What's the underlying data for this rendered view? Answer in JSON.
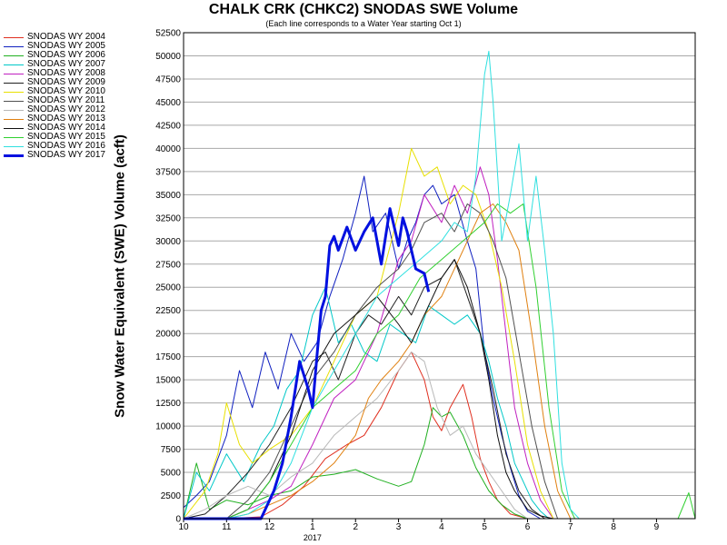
{
  "chart_data": {
    "type": "line",
    "title": "CHALK CRK (CHKC2) SNODAS SWE Volume",
    "subtitle": "(Each line corresponds to a Water Year starting Oct 1)",
    "xlabel": "",
    "ylabel": "Snow Water Equivalent (SWE) Volume (acft)",
    "ylim": [
      0,
      52500
    ],
    "yticks": [
      0,
      2500,
      5000,
      7500,
      10000,
      12500,
      15000,
      17500,
      20000,
      22500,
      25000,
      27500,
      30000,
      32500,
      35000,
      37500,
      40000,
      42500,
      45000,
      47500,
      50000,
      52500
    ],
    "xlim": [
      10,
      21.9
    ],
    "xticks": [
      {
        "x": 10,
        "label": "10"
      },
      {
        "x": 11,
        "label": "11"
      },
      {
        "x": 12,
        "label": "12"
      },
      {
        "x": 13,
        "label": "1"
      },
      {
        "x": 14,
        "label": "2"
      },
      {
        "x": 15,
        "label": "3"
      },
      {
        "x": 16,
        "label": "4"
      },
      {
        "x": 17,
        "label": "5"
      },
      {
        "x": 18,
        "label": "6"
      },
      {
        "x": 19,
        "label": "7"
      },
      {
        "x": 20,
        "label": "8"
      },
      {
        "x": 21,
        "label": "9"
      }
    ],
    "year_label": {
      "x": 13,
      "label": "2017"
    },
    "grid": true,
    "legend_position": "left",
    "series": [
      {
        "name": "SNODAS WY 2004",
        "color": "#e03020",
        "width": 1,
        "x": [
          10,
          11,
          11.8,
          12.3,
          12.8,
          13.3,
          13.8,
          14.2,
          14.6,
          15,
          15.3,
          15.6,
          15.8,
          16,
          16.2,
          16.5,
          16.7,
          16.9,
          17.1,
          17.3,
          17.6,
          18
        ],
        "y": [
          0,
          0,
          200,
          1500,
          3500,
          6500,
          8000,
          9000,
          12000,
          16000,
          18000,
          15000,
          11000,
          9500,
          12000,
          14500,
          11000,
          6500,
          4000,
          2000,
          500,
          0
        ]
      },
      {
        "name": "SNODAS WY 2005",
        "color": "#1020c0",
        "width": 1,
        "x": [
          10,
          10.3,
          10.6,
          11,
          11.3,
          11.6,
          11.9,
          12.2,
          12.5,
          12.8,
          13.1,
          13.4,
          13.7,
          14,
          14.2,
          14.4,
          14.7,
          15,
          15.2,
          15.4,
          15.6,
          15.8,
          16,
          16.3,
          16.6,
          16.8,
          17,
          17.2,
          17.4,
          17.6,
          17.8,
          18,
          18.3
        ],
        "y": [
          1200,
          2500,
          4000,
          9000,
          16000,
          12000,
          18000,
          14000,
          20000,
          17000,
          19000,
          24000,
          28000,
          33000,
          37000,
          31000,
          33000,
          27000,
          30000,
          32000,
          35000,
          36000,
          34000,
          35000,
          30000,
          27000,
          18000,
          13000,
          9000,
          5500,
          2500,
          800,
          0
        ]
      },
      {
        "name": "SNODAS WY 2006",
        "color": "#20b020",
        "width": 1,
        "x": [
          10,
          10.3,
          10.6,
          11,
          11.5,
          12,
          12.5,
          13,
          13.5,
          14,
          14.5,
          15,
          15.3,
          15.6,
          15.8,
          16,
          16.2,
          16.5,
          16.8,
          17.1,
          17.4,
          17.7,
          18
        ],
        "y": [
          0,
          6000,
          1000,
          2000,
          1500,
          2500,
          3000,
          4500,
          4800,
          5300,
          4300,
          3500,
          4000,
          8000,
          12000,
          11000,
          11500,
          9000,
          5500,
          3000,
          1500,
          500,
          0
        ]
      },
      {
        "name": "SNODAS WY 2007",
        "color": "#00c8c8",
        "width": 1,
        "x": [
          10,
          10.3,
          10.6,
          11,
          11.4,
          11.8,
          12.1,
          12.4,
          12.7,
          13,
          13.3,
          13.6,
          13.9,
          14.2,
          14.5,
          14.8,
          15.1,
          15.4,
          15.7,
          16,
          16.3,
          16.6,
          16.9,
          17.1,
          17.3,
          17.5,
          17.7,
          17.9,
          18.1,
          18.3,
          18.5
        ],
        "y": [
          0,
          5000,
          3000,
          7000,
          4000,
          8000,
          10000,
          14000,
          16000,
          22000,
          25000,
          19000,
          21000,
          18000,
          17000,
          21000,
          20000,
          19000,
          23000,
          22000,
          21000,
          22000,
          20000,
          17000,
          13000,
          10000,
          6000,
          4000,
          2000,
          800,
          0
        ]
      },
      {
        "name": "SNODAS WY 2008",
        "color": "#c020c0",
        "width": 1,
        "x": [
          10,
          11,
          11.5,
          12,
          12.5,
          13,
          13.5,
          14,
          14.5,
          15,
          15.3,
          15.6,
          16,
          16.3,
          16.6,
          16.9,
          17.1,
          17.3,
          17.5,
          17.7,
          18,
          18.3,
          18.6
        ],
        "y": [
          0,
          0,
          1000,
          2000,
          3500,
          8000,
          13000,
          15000,
          20000,
          28000,
          30000,
          35000,
          32000,
          36000,
          33000,
          38000,
          35000,
          28000,
          20000,
          12000,
          6000,
          2000,
          0
        ]
      },
      {
        "name": "SNODAS WY 2009",
        "color": "#202020",
        "width": 1,
        "x": [
          10,
          10.5,
          11,
          11.5,
          12,
          12.5,
          13,
          13.3,
          13.6,
          14,
          14.3,
          14.6,
          15,
          15.3,
          15.6,
          16,
          16.3,
          16.6,
          16.9,
          17.2,
          17.5,
          17.8,
          18.1,
          18.4
        ],
        "y": [
          0,
          500,
          2500,
          5000,
          8000,
          12000,
          17000,
          18000,
          15000,
          20000,
          22000,
          21000,
          24000,
          22000,
          25000,
          26000,
          28000,
          24000,
          20000,
          14000,
          7000,
          3000,
          1000,
          0
        ]
      },
      {
        "name": "SNODAS WY 2010",
        "color": "#e8e000",
        "width": 1,
        "x": [
          10,
          10.5,
          10.8,
          11,
          11.3,
          11.6,
          12,
          12.5,
          13,
          13.5,
          14,
          14.5,
          15,
          15.3,
          15.6,
          15.9,
          16.2,
          16.5,
          16.8,
          17.1,
          17.4,
          17.7,
          18,
          18.3,
          18.6
        ],
        "y": [
          0,
          3000,
          7000,
          12500,
          8000,
          6000,
          7500,
          9000,
          12000,
          17000,
          22000,
          24000,
          33000,
          40000,
          37000,
          38000,
          34000,
          36000,
          35000,
          31000,
          25000,
          17000,
          8000,
          3000,
          0
        ]
      },
      {
        "name": "SNODAS WY 2011",
        "color": "#505050",
        "width": 1,
        "x": [
          10,
          11,
          11.5,
          12,
          12.5,
          13,
          13.5,
          14,
          14.5,
          15,
          15.3,
          15.6,
          16,
          16.3,
          16.6,
          16.9,
          17.2,
          17.5,
          17.8,
          18.1,
          18.4,
          18.7
        ],
        "y": [
          0,
          0,
          2000,
          5000,
          10000,
          15000,
          18000,
          22000,
          25000,
          27000,
          29000,
          32000,
          33000,
          31000,
          34000,
          33000,
          30000,
          26000,
          18000,
          10000,
          4000,
          0
        ]
      },
      {
        "name": "SNODAS WY 2012",
        "color": "#b8b8b8",
        "width": 1,
        "x": [
          10,
          10.5,
          11,
          11.5,
          12,
          12.5,
          13,
          13.5,
          14,
          14.5,
          15,
          15.3,
          15.6,
          15.9,
          16.2,
          16.5,
          16.8,
          17.1,
          17.4,
          17.7,
          18
        ],
        "y": [
          0,
          1000,
          2500,
          3500,
          2500,
          4500,
          6000,
          9000,
          11000,
          13000,
          16000,
          18000,
          17000,
          12000,
          9000,
          10000,
          7000,
          5000,
          3000,
          1000,
          0
        ]
      },
      {
        "name": "SNODAS WY 2013",
        "color": "#e08010",
        "width": 1,
        "x": [
          10,
          11,
          11.5,
          12,
          12.5,
          13,
          13.5,
          14,
          14.3,
          14.6,
          15,
          15.3,
          15.6,
          16,
          16.3,
          16.6,
          16.9,
          17.2,
          17.5,
          17.8,
          18.1,
          18.4,
          18.7,
          19
        ],
        "y": [
          0,
          0,
          500,
          1500,
          2500,
          4000,
          6000,
          9000,
          13000,
          15000,
          17000,
          19000,
          22000,
          24000,
          27000,
          30000,
          33000,
          34000,
          32000,
          29000,
          20000,
          10000,
          3000,
          0
        ]
      },
      {
        "name": "SNODAS WY 2014",
        "color": "#101010",
        "width": 1,
        "x": [
          10,
          11,
          11.5,
          12,
          12.5,
          13,
          13.5,
          14,
          14.5,
          15,
          15.3,
          15.6,
          16,
          16.3,
          16.6,
          16.9,
          17.1,
          17.3,
          17.5,
          17.7,
          18,
          18.3,
          18.6
        ],
        "y": [
          0,
          0,
          1000,
          4000,
          9000,
          16000,
          20000,
          22000,
          24000,
          21000,
          19000,
          22000,
          26000,
          28000,
          25000,
          20000,
          15000,
          9000,
          5000,
          3000,
          1000,
          300,
          0
        ]
      },
      {
        "name": "SNODAS WY 2015",
        "color": "#30d030",
        "width": 1,
        "x": [
          10,
          11,
          11.5,
          12,
          12.5,
          13,
          13.5,
          14,
          14.5,
          15,
          15.5,
          16,
          16.5,
          17,
          17.3,
          17.6,
          17.9,
          18.2,
          18.5,
          18.8,
          19.1,
          21.5,
          21.75,
          21.9
        ],
        "y": [
          0,
          0,
          1000,
          4000,
          8000,
          12000,
          14000,
          16000,
          20000,
          22000,
          26000,
          28000,
          30000,
          32000,
          34000,
          33000,
          34000,
          25000,
          12000,
          3000,
          0,
          0,
          2800,
          0
        ]
      },
      {
        "name": "SNODAS WY 2016",
        "color": "#30e0e0",
        "width": 1,
        "x": [
          10,
          11,
          11.5,
          12,
          12.5,
          13,
          13.5,
          14,
          14.5,
          15,
          15.5,
          16,
          16.3,
          16.6,
          16.8,
          17,
          17.1,
          17.2,
          17.4,
          17.6,
          17.8,
          18,
          18.2,
          18.4,
          18.6,
          18.8,
          19,
          19.2
        ],
        "y": [
          0,
          0,
          500,
          2000,
          6000,
          12000,
          16000,
          20000,
          24000,
          26000,
          28000,
          30000,
          32000,
          31000,
          37000,
          48000,
          50500,
          45000,
          30000,
          35000,
          40500,
          30000,
          37000,
          29000,
          20000,
          6000,
          1000,
          0
        ]
      },
      {
        "name": "SNODAS WY 2017",
        "color": "#0010e0",
        "width": 3,
        "x": [
          10,
          11.8,
          12.1,
          12.3,
          12.5,
          12.7,
          12.9,
          13,
          13.1,
          13.2,
          13.3,
          13.4,
          13.5,
          13.6,
          13.8,
          14,
          14.2,
          14.4,
          14.6,
          14.8,
          15,
          15.1,
          15.2,
          15.4,
          15.6,
          15.7
        ],
        "y": [
          0,
          0,
          3000,
          6000,
          11000,
          17000,
          14000,
          12000,
          17500,
          22500,
          24000,
          29500,
          30500,
          29000,
          31500,
          29000,
          31000,
          32500,
          27500,
          33500,
          29500,
          32500,
          31000,
          27000,
          26500,
          24500
        ]
      }
    ]
  }
}
